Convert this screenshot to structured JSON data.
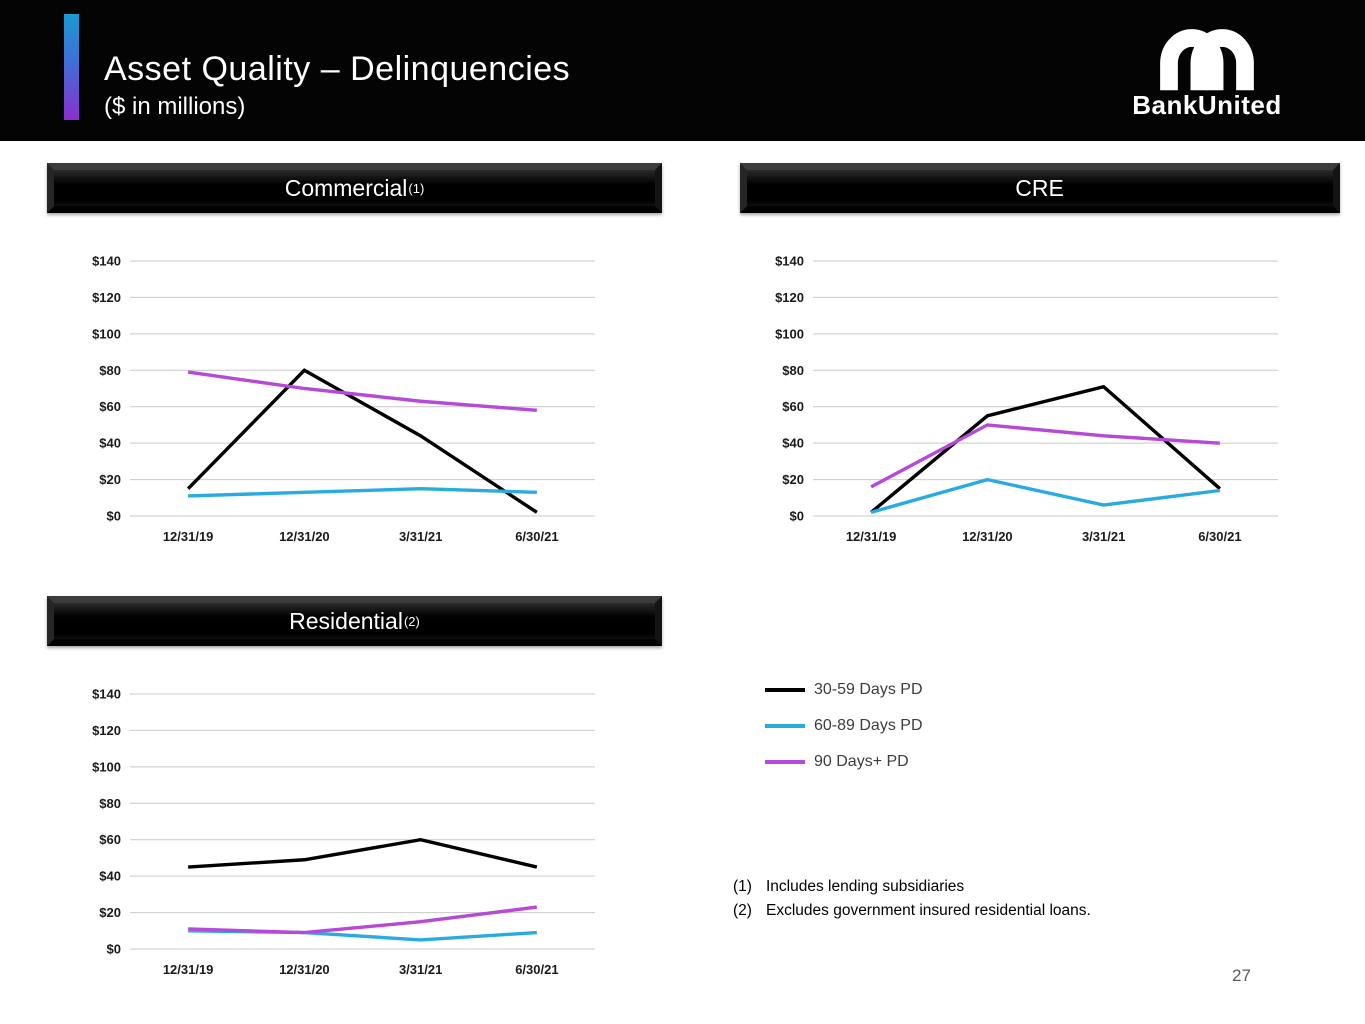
{
  "slide": {
    "title": "Asset Quality – Delinquencies",
    "subtitle": "($ in millions)",
    "logo_text": "BankUnited",
    "page_number": "27"
  },
  "panels": {
    "commercial": {
      "title": "Commercial",
      "sup": "(1)"
    },
    "cre": {
      "title": "CRE",
      "sup": ""
    },
    "residential": {
      "title": "Residential ",
      "sup": "(2)"
    }
  },
  "legend": [
    {
      "label": "30-59 Days PD",
      "color": "#000000"
    },
    {
      "label": "60-89 Days PD",
      "color": "#29abe2"
    },
    {
      "label": "90 Days+ PD",
      "color": "#b649d8"
    }
  ],
  "footnotes": [
    {
      "marker": "(1)",
      "text": "Includes lending subsidiaries"
    },
    {
      "marker": "(2)",
      "text": "Excludes government insured residential loans."
    }
  ],
  "chart_data": [
    {
      "id": "commercial",
      "type": "line",
      "title": "Commercial (1)",
      "categories": [
        "12/31/19",
        "12/31/20",
        "3/31/21",
        "6/30/21"
      ],
      "series": [
        {
          "name": "30-59 Days PD",
          "color": "#000000",
          "values": [
            15,
            80,
            44,
            2
          ]
        },
        {
          "name": "60-89 Days PD",
          "color": "#29abe2",
          "values": [
            11,
            13,
            15,
            13
          ]
        },
        {
          "name": "90 Days+ PD",
          "color": "#b649d8",
          "values": [
            79,
            70,
            63,
            58
          ]
        }
      ],
      "ylim": [
        0,
        140
      ],
      "ytick_step": 20,
      "ytick_prefix": "$",
      "grid": true,
      "legend_position": "outside-right"
    },
    {
      "id": "cre",
      "type": "line",
      "title": "CRE",
      "categories": [
        "12/31/19",
        "12/31/20",
        "3/31/21",
        "6/30/21"
      ],
      "series": [
        {
          "name": "30-59 Days PD",
          "color": "#000000",
          "values": [
            2,
            55,
            71,
            15
          ]
        },
        {
          "name": "60-89 Days PD",
          "color": "#29abe2",
          "values": [
            2,
            20,
            6,
            14
          ]
        },
        {
          "name": "90 Days+ PD",
          "color": "#b649d8",
          "values": [
            16,
            50,
            44,
            40
          ]
        }
      ],
      "ylim": [
        0,
        140
      ],
      "ytick_step": 20,
      "ytick_prefix": "$",
      "grid": true,
      "legend_position": "outside-right"
    },
    {
      "id": "residential",
      "type": "line",
      "title": "Residential (2)",
      "categories": [
        "12/31/19",
        "12/31/20",
        "3/31/21",
        "6/30/21"
      ],
      "series": [
        {
          "name": "30-59 Days PD",
          "color": "#000000",
          "values": [
            45,
            49,
            60,
            45
          ]
        },
        {
          "name": "60-89 Days PD",
          "color": "#29abe2",
          "values": [
            10,
            9,
            5,
            9
          ]
        },
        {
          "name": "90 Days+ PD",
          "color": "#b649d8",
          "values": [
            11,
            9,
            15,
            23
          ]
        }
      ],
      "ylim": [
        0,
        140
      ],
      "ytick_step": 20,
      "ytick_prefix": "$",
      "grid": true,
      "legend_position": "outside-right"
    }
  ]
}
